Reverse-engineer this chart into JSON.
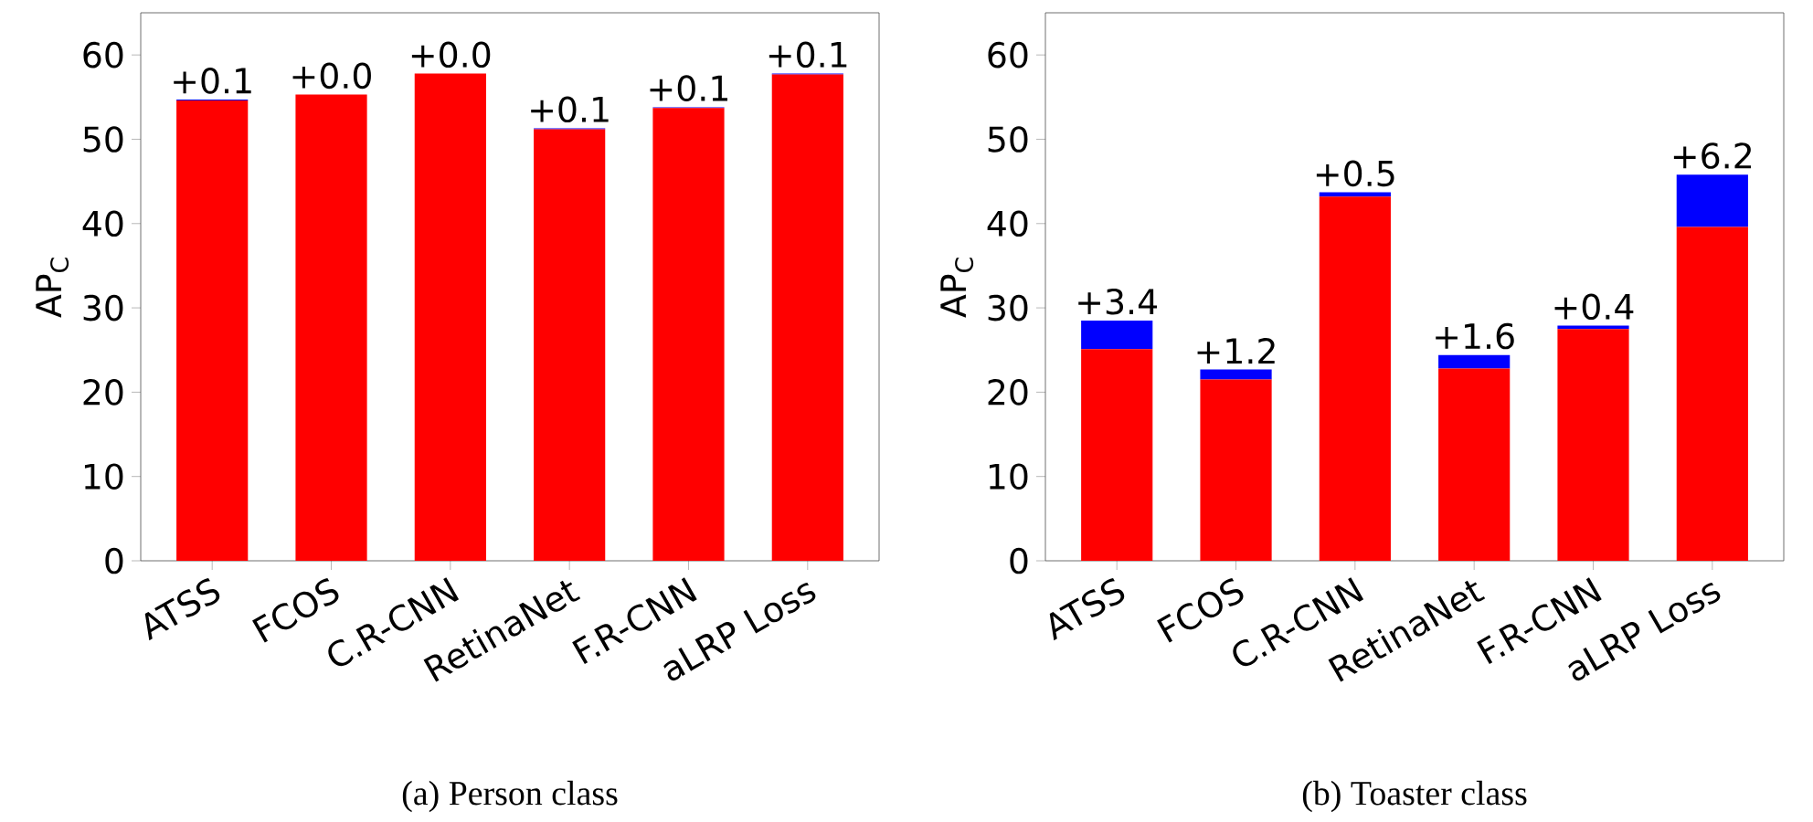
{
  "chart_data": [
    {
      "type": "bar",
      "stacked": true,
      "categories": [
        "ATSS",
        "FCOS",
        "C.R-CNN",
        "RetinaNet",
        "F.R-CNN",
        "aLRP Loss"
      ],
      "ylabel": "AP$_{C}$",
      "ylim": [
        0,
        65
      ],
      "yticks": [
        0,
        10,
        20,
        30,
        40,
        50,
        60
      ],
      "series": [
        {
          "color": "#ff0000",
          "values": [
            54.6,
            55.3,
            57.8,
            51.2,
            53.7,
            57.7
          ]
        },
        {
          "color": "#0000ff",
          "values": [
            0.1,
            0.0,
            0.0,
            0.1,
            0.1,
            0.1
          ],
          "value_labels": [
            "+0.1",
            "+0.0",
            "+0.0",
            "+0.1",
            "+0.1",
            "+0.1"
          ]
        }
      ],
      "annotations": [
        "(a) Person class"
      ]
    },
    {
      "type": "bar",
      "stacked": true,
      "categories": [
        "ATSS",
        "FCOS",
        "C.R-CNN",
        "RetinaNet",
        "F.R-CNN",
        "aLRP Loss"
      ],
      "ylabel": "AP$_{C}$",
      "ylim": [
        0,
        65
      ],
      "yticks": [
        0,
        10,
        20,
        30,
        40,
        50,
        60
      ],
      "series": [
        {
          "color": "#ff0000",
          "values": [
            25.1,
            21.5,
            43.2,
            22.8,
            27.5,
            39.6
          ]
        },
        {
          "color": "#0000ff",
          "values": [
            3.4,
            1.2,
            0.5,
            1.6,
            0.4,
            6.2
          ],
          "value_labels": [
            "+3.4",
            "+1.2",
            "+0.5",
            "+1.6",
            "+0.4",
            "+6.2"
          ]
        }
      ],
      "annotations": [
        "(b) Toaster class"
      ]
    }
  ]
}
